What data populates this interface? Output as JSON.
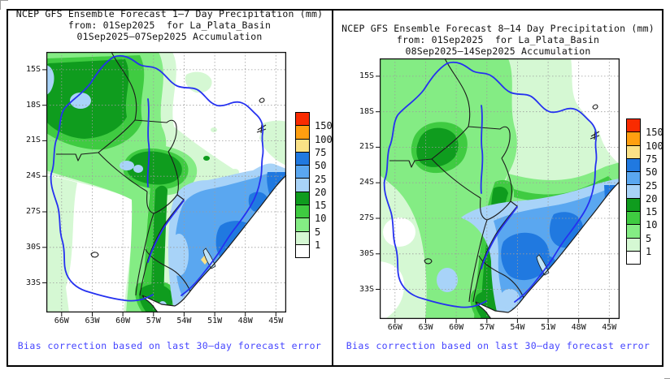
{
  "panels": [
    {
      "title_line1": "NCEP GFS Ensemble Forecast 1–7 Day Precipitation (mm)",
      "title_line2": "from: 01Sep2025  for La_Plata_Basin",
      "title_line3": "01Sep2025–07Sep2025 Accumulation",
      "caption": "Bias correction based on last 30–day forecast error"
    },
    {
      "title_line1": "NCEP GFS Ensemble Forecast 8–14 Day Precipitation (mm)",
      "title_line2": "from: 01Sep2025  for La_Plata_Basin",
      "title_line3": "08Sep2025–14Sep2025 Accumulation",
      "caption": "Bias correction based on last 30–day forecast error"
    }
  ],
  "map_axes": {
    "lat_labels": [
      "15S",
      "18S",
      "21S",
      "24S",
      "27S",
      "30S",
      "33S"
    ],
    "lon_labels": [
      "66W",
      "63W",
      "60W",
      "57W",
      "54W",
      "51W",
      "48W",
      "45W"
    ]
  },
  "legend": {
    "labels": [
      "150",
      "100",
      "75",
      "50",
      "25",
      "20",
      "15",
      "10",
      "5",
      "1"
    ],
    "colors": [
      "#f92b00",
      "#ff9f10",
      "#fae186",
      "#2079e0",
      "#5aa7f0",
      "#a8d3f8",
      "#0f9c1e",
      "#3fcb41",
      "#84ec84",
      "#d5f8d3",
      "#ffffff"
    ]
  },
  "colors": {
    "caption_text": "#4545ff",
    "basin_river": "#2531f0",
    "country_border": "#1b1b1b",
    "gridline": "#9c9c9c",
    "coast_water": "#ffffff",
    "lagoon": "#bfe3f8",
    "frame": "#111111"
  }
}
